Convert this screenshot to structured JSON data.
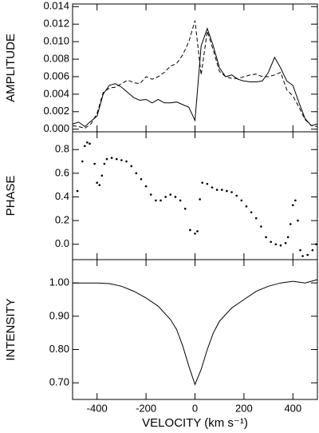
{
  "chart_data": [
    {
      "type": "line",
      "ylabel": "AMPLITUDE",
      "x": [
        -500,
        -475,
        -450,
        -425,
        -400,
        -375,
        -350,
        -325,
        -300,
        -275,
        -250,
        -225,
        -200,
        -175,
        -150,
        -125,
        -100,
        -75,
        -50,
        -25,
        0,
        25,
        50,
        75,
        100,
        125,
        150,
        175,
        200,
        225,
        250,
        275,
        300,
        325,
        350,
        375,
        400,
        425,
        450,
        475,
        500
      ],
      "series": [
        {
          "color": "#000000",
          "dash": false,
          "values": [
            0.0006,
            0.0008,
            0.0003,
            0.0009,
            0.0015,
            0.004,
            0.005,
            0.0052,
            0.0048,
            0.0042,
            0.0036,
            0.0033,
            0.0034,
            0.003,
            0.0034,
            0.003,
            0.003,
            0.0031,
            0.0028,
            0.0025,
            0.001,
            0.0095,
            0.0115,
            0.0095,
            0.007,
            0.006,
            0.0062,
            0.0057,
            0.0055,
            0.0054,
            0.0054,
            0.0055,
            0.0065,
            0.0082,
            0.007,
            0.0055,
            0.005,
            0.003,
            0.0012,
            0.0004,
            0.0006
          ]
        },
        {
          "color": "#000000",
          "dash": true,
          "values": [
            0.0004,
            0.0003,
            0.0001,
            0.0006,
            0.0018,
            0.0042,
            0.0047,
            0.0048,
            0.0052,
            0.0056,
            0.0053,
            0.0052,
            0.006,
            0.0057,
            0.006,
            0.0065,
            0.0072,
            0.0075,
            0.0085,
            0.01,
            0.0124,
            0.0062,
            0.0112,
            0.009,
            0.0066,
            0.006,
            0.0058,
            0.0058,
            0.006,
            0.0062,
            0.0063,
            0.006,
            0.006,
            0.0062,
            0.0065,
            0.0045,
            0.0038,
            0.0025,
            0.0011,
            0.0004,
            0.0003
          ]
        }
      ],
      "xlim": [
        -500,
        500
      ],
      "xticks": [
        -400,
        -200,
        0,
        200,
        400
      ],
      "ylim": [
        -0.0003,
        0.0143
      ],
      "yticks": [
        {
          "value": 0,
          "label": "0.000"
        },
        {
          "value": 0.002,
          "label": "0.002"
        },
        {
          "value": 0.004,
          "label": "0.004"
        },
        {
          "value": 0.006,
          "label": "0.006"
        },
        {
          "value": 0.008,
          "label": "0.008"
        },
        {
          "value": 0.01,
          "label": "0.010"
        },
        {
          "value": 0.012,
          "label": "0.012"
        },
        {
          "value": 0.014,
          "label": "0.014"
        }
      ]
    },
    {
      "type": "scatter",
      "ylabel": "PHASE",
      "x": [
        -480,
        -460,
        -450,
        -440,
        -430,
        -410,
        -400,
        -390,
        -380,
        -370,
        -360,
        -340,
        -320,
        -300,
        -280,
        -260,
        -240,
        -220,
        -200,
        -180,
        -160,
        -140,
        -120,
        -100,
        -80,
        -60,
        -40,
        -20,
        0,
        10,
        20,
        30,
        50,
        70,
        90,
        110,
        130,
        150,
        170,
        190,
        210,
        230,
        250,
        270,
        290,
        310,
        330,
        350,
        370,
        380,
        390,
        400,
        410,
        420,
        430,
        440,
        460,
        480,
        495
      ],
      "series": [
        {
          "color": "#000000",
          "values": [
            0.45,
            0.7,
            0.83,
            0.86,
            0.85,
            0.68,
            0.52,
            0.5,
            0.58,
            0.68,
            0.72,
            0.73,
            0.72,
            0.71,
            0.7,
            0.66,
            0.6,
            0.55,
            0.49,
            0.42,
            0.37,
            0.37,
            0.4,
            0.42,
            0.4,
            0.37,
            0.3,
            0.12,
            0.09,
            0.11,
            0.38,
            0.52,
            0.51,
            0.48,
            0.46,
            0.46,
            0.45,
            0.44,
            0.41,
            0.37,
            0.32,
            0.27,
            0.22,
            0.15,
            0.06,
            0.02,
            0.0,
            -0.01,
            0.01,
            0.06,
            0.17,
            0.33,
            0.37,
            0.2,
            -0.05,
            -0.1,
            -0.09,
            -0.05,
            0.0
          ]
        }
      ],
      "xlim": [
        -500,
        500
      ],
      "xticks": [
        -400,
        -200,
        0,
        200,
        400
      ],
      "ylim": [
        -0.13,
        0.95
      ],
      "yticks": [
        {
          "value": 0,
          "label": "0.0"
        },
        {
          "value": 0.2,
          "label": "0.2"
        },
        {
          "value": 0.4,
          "label": "0.4"
        },
        {
          "value": 0.6,
          "label": "0.6"
        },
        {
          "value": 0.8,
          "label": "0.8"
        }
      ]
    },
    {
      "type": "line",
      "ylabel": "INTENSITY",
      "xlabel": "VELOCITY (km s⁻¹)",
      "x": [
        -500,
        -400,
        -350,
        -300,
        -250,
        -200,
        -150,
        -100,
        -75,
        -50,
        -25,
        0,
        25,
        50,
        75,
        100,
        150,
        200,
        250,
        300,
        350,
        400,
        450,
        500
      ],
      "series": [
        {
          "color": "#000000",
          "dash": false,
          "values": [
            1.0,
            1.0,
            0.998,
            0.99,
            0.975,
            0.955,
            0.93,
            0.89,
            0.86,
            0.81,
            0.75,
            0.695,
            0.74,
            0.8,
            0.85,
            0.885,
            0.925,
            0.95,
            0.975,
            0.99,
            1.0,
            1.005,
            1.0,
            1.01
          ]
        }
      ],
      "xlim": [
        -500,
        500
      ],
      "xticks": [
        -400,
        -200,
        0,
        200,
        400
      ],
      "ylim": [
        0.65,
        1.07
      ],
      "yticks": [
        {
          "value": 0.7,
          "label": "0.70"
        },
        {
          "value": 0.8,
          "label": "0.80"
        },
        {
          "value": 0.9,
          "label": "0.90"
        },
        {
          "value": 1.0,
          "label": "1.00"
        }
      ]
    }
  ]
}
